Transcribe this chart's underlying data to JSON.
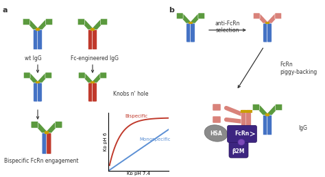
{
  "bg_color": "#ffffff",
  "green": "#5b9a3e",
  "blue": "#4472c4",
  "red": "#c0392b",
  "pink": "#d9827a",
  "gold": "#c8a000",
  "gray_hsa": "#808080",
  "purple_fcrn": "#4b2e8a",
  "purple_b2m": "#5b2d8e",
  "purple_b2m_small": "#8b4bb8",
  "text_color": "#333333",
  "bispecific_color": "#c0392b",
  "monospecific_color": "#5b8fd4",
  "label_a": "a",
  "label_b": "b",
  "wt_label": "wt IgG",
  "fc_label": "Fc-engineered IgG",
  "knobs_label": "Knobs n' hole",
  "bispecific_label": "Bispecific FcRn engagement",
  "anti_fcrn_label": "anti-FcRn",
  "selection_label": "selection",
  "fcrn_piggy_label": "FcRn\npiggy-backing",
  "hsa_label": "HSA",
  "fcrn_label": "FcRn",
  "igg_label": "IgG",
  "b2m_label": "β2M",
  "bispecific_curve_label": "Bispecific",
  "monospecific_curve_label": "Monospecific",
  "xaxis_label": "Kᴅ pH 7.4",
  "yaxis_label": "Kᴅ pH 6"
}
